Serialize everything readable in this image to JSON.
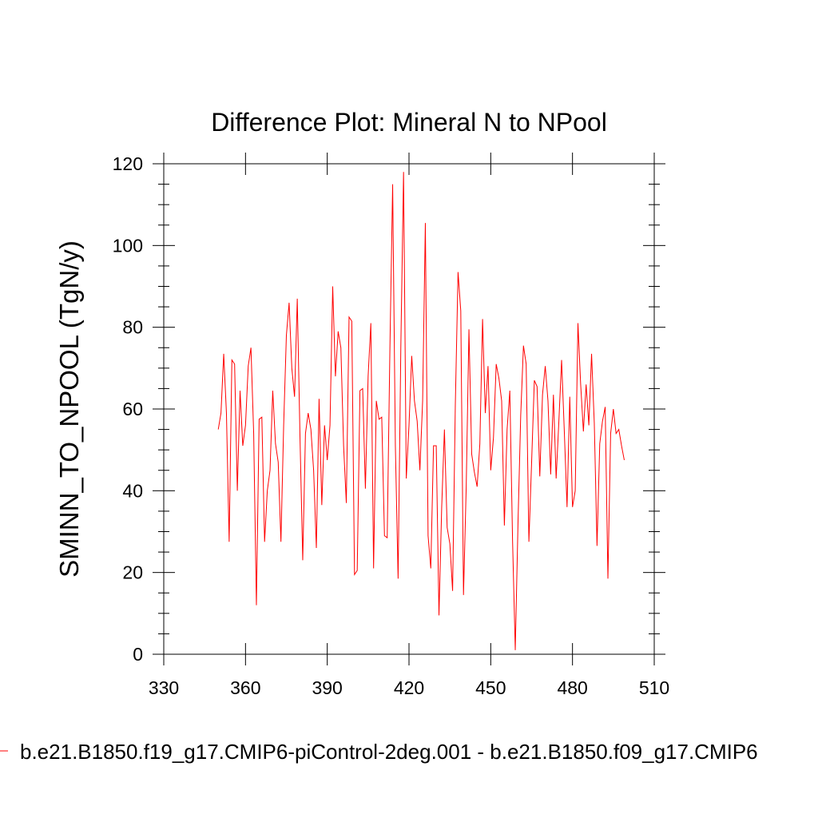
{
  "chart_data": {
    "type": "line",
    "title": "Difference Plot: Mineral N to NPool",
    "xlabel": "",
    "ylabel": "SMINN_TO_NPOOL  (TgN/y)",
    "xlim": [
      330,
      510
    ],
    "ylim": [
      0,
      120
    ],
    "x_ticks": [
      330,
      360,
      390,
      420,
      450,
      480,
      510
    ],
    "y_ticks": [
      0,
      20,
      40,
      60,
      80,
      100,
      120
    ],
    "x_tick_labels": [
      "330",
      "360",
      "390",
      "420",
      "450",
      "480",
      "510"
    ],
    "y_tick_labels": [
      "0",
      "20",
      "40",
      "60",
      "80",
      "100",
      "120"
    ],
    "grid": false,
    "legend_position": "bottom",
    "series": [
      {
        "name": "b.e21.B1850.f19_g17.CMIP6-piControl-2deg.001 - b.e21.B1850.f09_g17.CMIP6",
        "color": "#ff0000",
        "x": [
          350,
          351,
          352,
          353,
          354,
          355,
          356,
          357,
          358,
          359,
          360,
          361,
          362,
          363,
          364,
          365,
          366,
          367,
          368,
          369,
          370,
          371,
          372,
          373,
          374,
          375,
          376,
          377,
          378,
          379,
          380,
          381,
          382,
          383,
          384,
          385,
          386,
          387,
          388,
          389,
          390,
          391,
          392,
          393,
          394,
          395,
          396,
          397,
          398,
          399,
          400,
          401,
          402,
          403,
          404,
          405,
          406,
          407,
          408,
          409,
          410,
          411,
          412,
          413,
          414,
          415,
          416,
          417,
          418,
          419,
          420,
          421,
          422,
          423,
          424,
          425,
          426,
          427,
          428,
          429,
          430,
          431,
          432,
          433,
          434,
          435,
          436,
          437,
          438,
          439,
          440,
          441,
          442,
          443,
          444,
          445,
          446,
          447,
          448,
          449,
          450,
          451,
          452,
          453,
          454,
          455,
          456,
          457,
          458,
          459,
          460,
          461,
          462,
          463,
          464,
          465,
          466,
          467,
          468,
          469,
          470,
          471,
          472,
          473,
          474,
          475,
          476,
          477,
          478,
          479,
          480,
          481,
          482,
          483,
          484,
          485,
          486,
          487,
          488,
          489,
          490,
          491,
          492,
          493,
          494,
          495,
          496,
          497,
          498,
          499
        ],
        "y": [
          55,
          59,
          73.5,
          59,
          27.5,
          72,
          71,
          40,
          64.5,
          51,
          56,
          70.5,
          75,
          54,
          12,
          57.5,
          58,
          27.5,
          40,
          45,
          64.5,
          51.5,
          47,
          27.5,
          56,
          78,
          86,
          70,
          63,
          87,
          53,
          23,
          54,
          59,
          55,
          45,
          26,
          62.5,
          36.5,
          56,
          47.5,
          56,
          90,
          68,
          79,
          75,
          51,
          37,
          82.5,
          81.5,
          19.5,
          20.5,
          64.5,
          65,
          40.5,
          68,
          81,
          21,
          62,
          57.5,
          58,
          29,
          28.5,
          75,
          115,
          51,
          18.5,
          75,
          118,
          43,
          56,
          73,
          62,
          57,
          45,
          62,
          105.5,
          29,
          21,
          51,
          51,
          9.5,
          36,
          55,
          31,
          27,
          15.5,
          61,
          93.5,
          84,
          14.5,
          41,
          79.5,
          49,
          44.5,
          41,
          51.5,
          82,
          59,
          70.5,
          45,
          53,
          71,
          67.5,
          62,
          31.5,
          55,
          64.5,
          28,
          1,
          32,
          58.5,
          75.5,
          71,
          27.5,
          47,
          67,
          65.5,
          43.5,
          63.5,
          70.5,
          62,
          44,
          63.5,
          43,
          57,
          72,
          54.5,
          36,
          63,
          36,
          40,
          81,
          66,
          54.5,
          66,
          56,
          73.5,
          56.5,
          26.5,
          51.5,
          57,
          60.5,
          18.5,
          54,
          60,
          54,
          55,
          51,
          47.5
        ]
      }
    ]
  }
}
